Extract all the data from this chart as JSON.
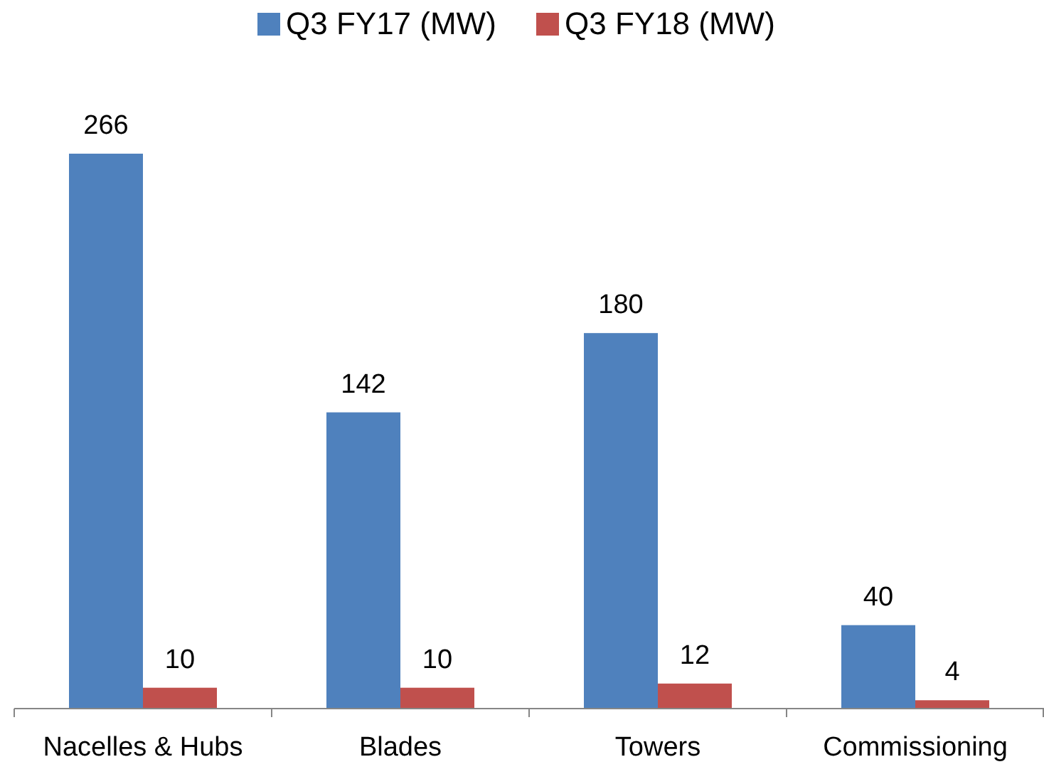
{
  "chart_data": {
    "type": "bar",
    "categories": [
      "Nacelles & Hubs",
      "Blades",
      "Towers",
      "Commissioning"
    ],
    "series": [
      {
        "name": "Q3 FY17 (MW)",
        "color": "#4f81bd",
        "values": [
          266,
          142,
          180,
          40
        ]
      },
      {
        "name": "Q3 FY18 (MW)",
        "color": "#c0504d",
        "values": [
          10,
          10,
          12,
          4
        ]
      }
    ],
    "data_labels": true,
    "legend": "top"
  }
}
